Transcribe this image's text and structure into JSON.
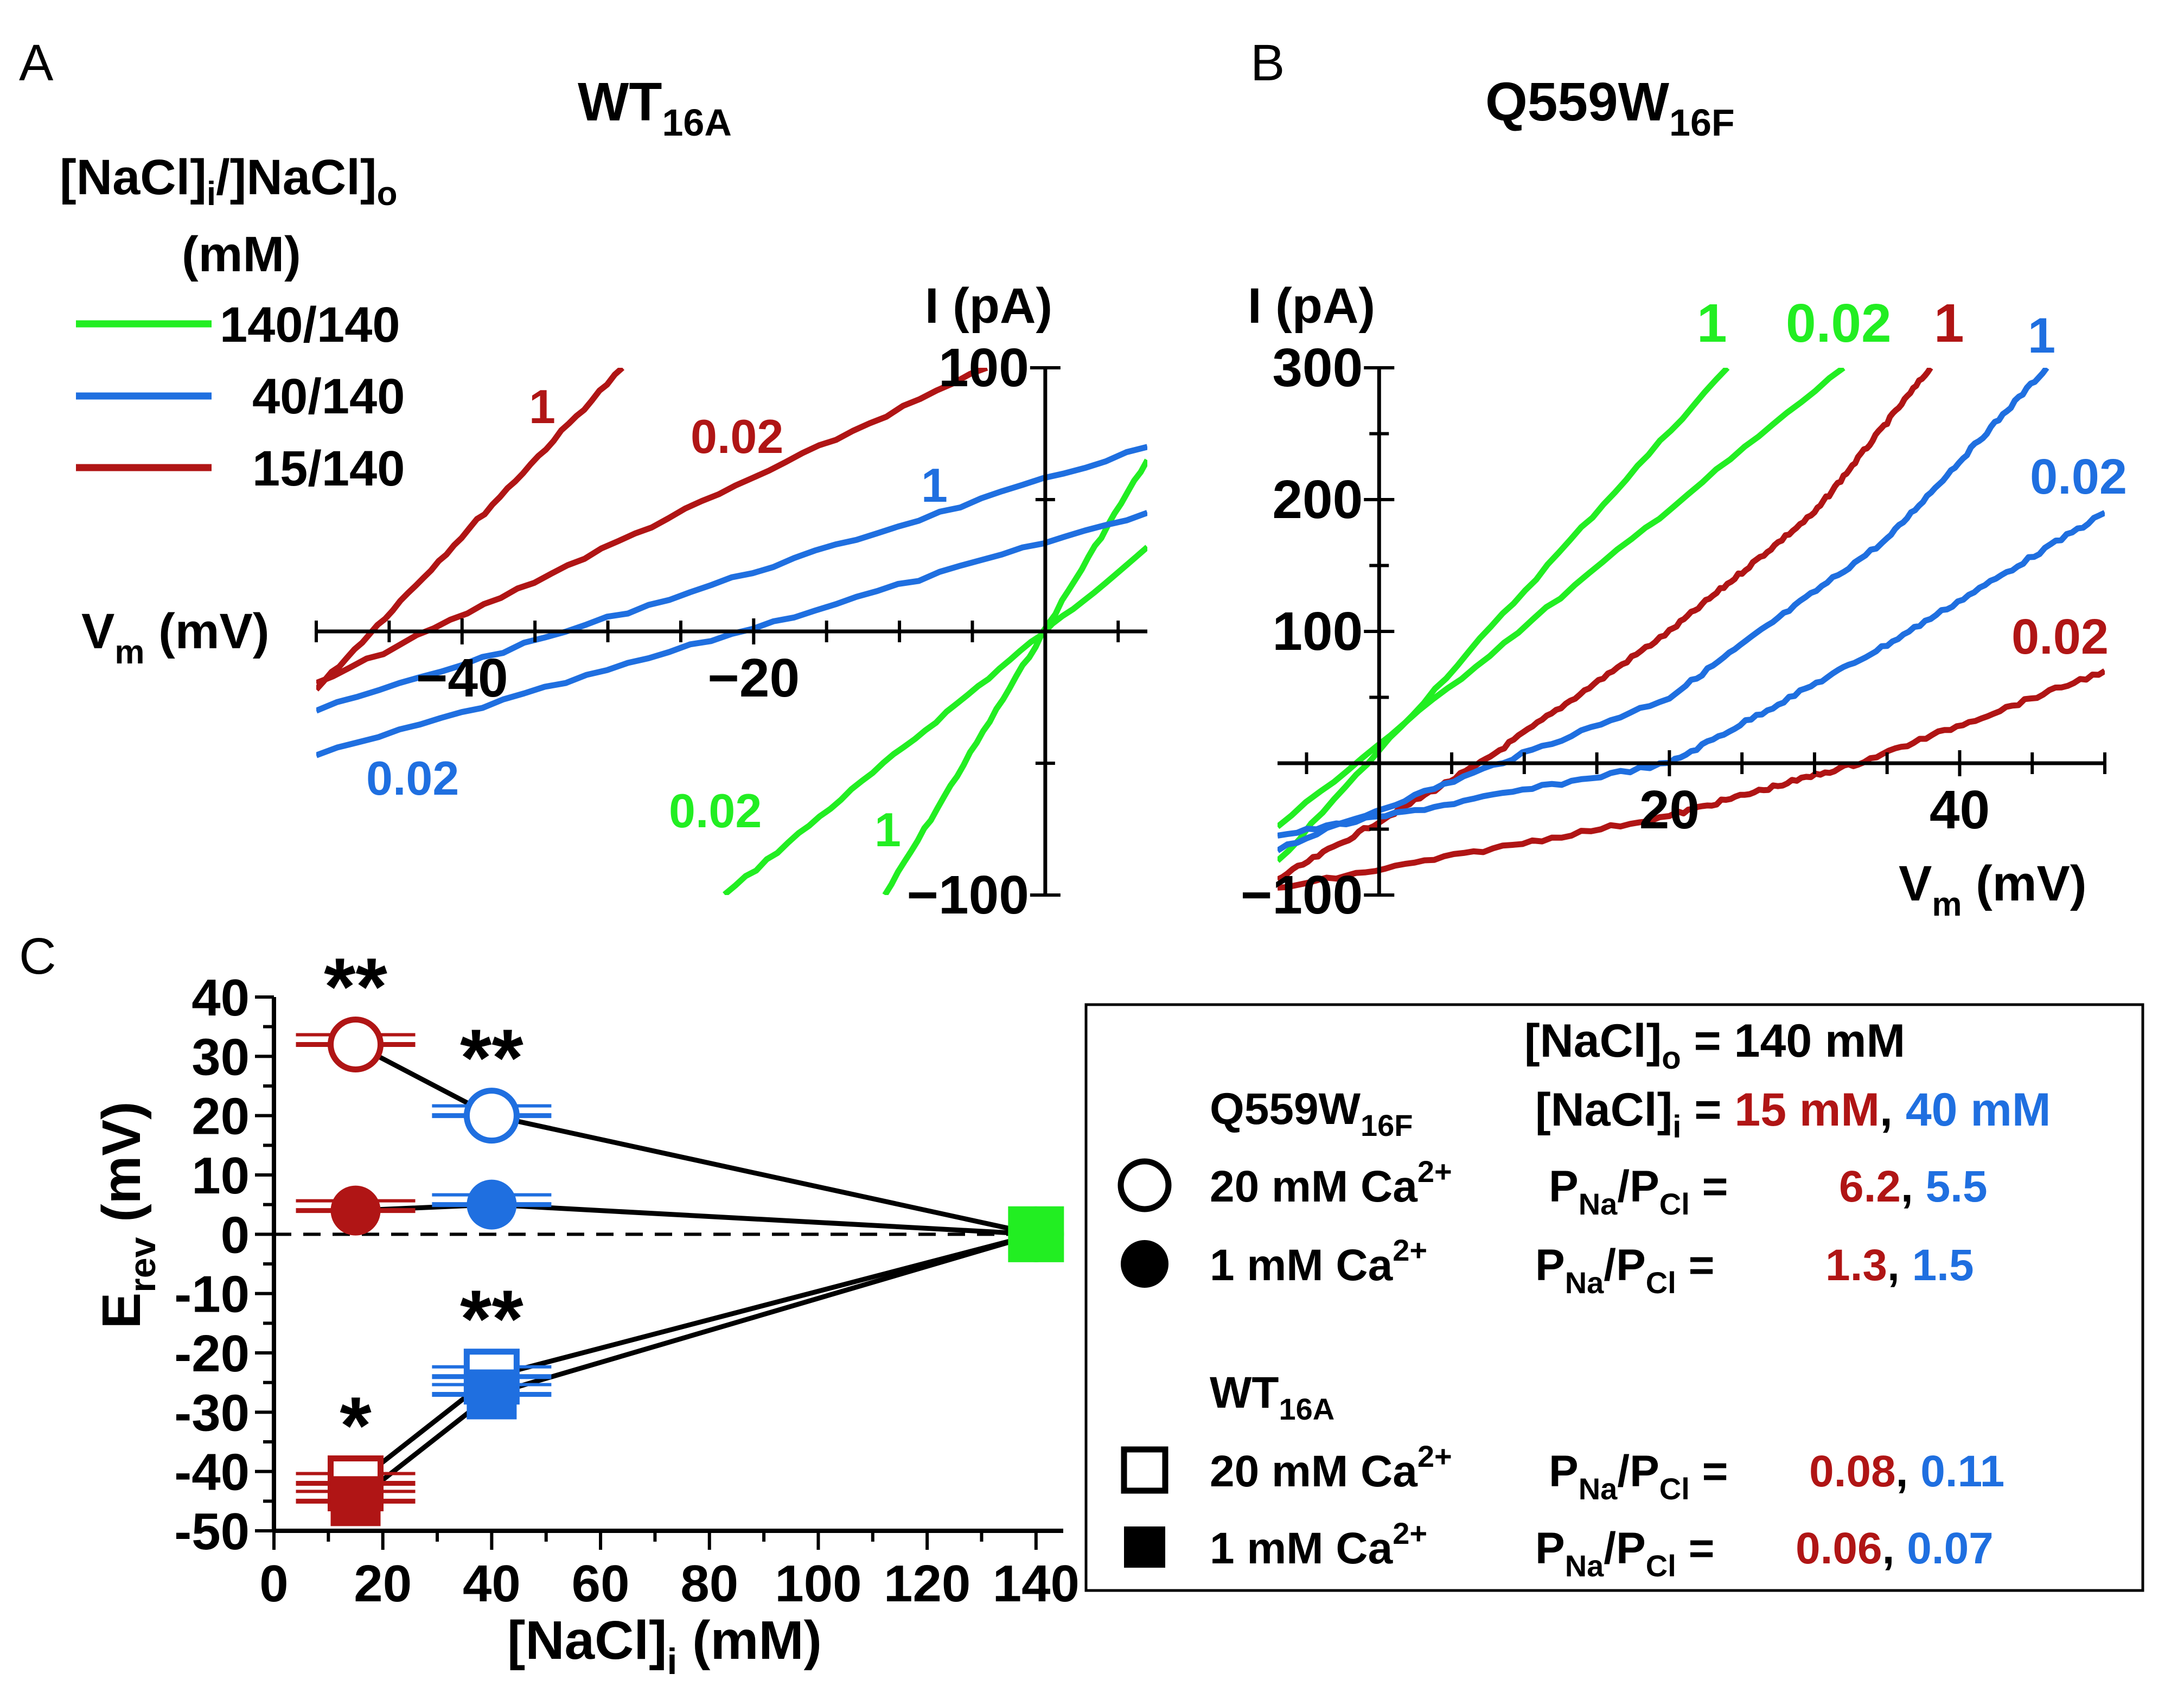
{
  "colors": {
    "green": "#22ee22",
    "blue": "#1f6fe0",
    "red": "#b01515",
    "black": "#000000"
  },
  "chart_data": [
    {
      "id": "A",
      "type": "line",
      "panel_label": "A",
      "title": "WT",
      "title_sub": "16A",
      "legend_title": "[NaCl]i/]NaCl]o",
      "legend_title_parts": [
        "[NaCl]",
        "i",
        "/]NaCl]",
        "o"
      ],
      "legend_units": "(mM)",
      "legend": [
        {
          "label": "140/140",
          "color": "green"
        },
        {
          "label": "40/140",
          "color": "blue"
        },
        {
          "label": "15/140",
          "color": "red"
        }
      ],
      "xlabel": "Vm (mV)",
      "xlabel_main": "V",
      "xlabel_sub": "m",
      "xlabel_unit": " (mV)",
      "ylabel": "I (pA)",
      "xlim": [
        -50,
        7
      ],
      "ylim": [
        -100,
        100
      ],
      "x_ticks": [
        -40,
        -20
      ],
      "x_tick_labels": [
        "−40",
        "−20"
      ],
      "y_ticks": [
        100,
        -100
      ],
      "y_tick_labels": [
        "100",
        "−100"
      ],
      "series": [
        {
          "name": "140/140 1",
          "color": "green",
          "label": "1",
          "x": [
            -11,
            7
          ],
          "y": [
            -100,
            65
          ]
        },
        {
          "name": "140/140 0.02",
          "color": "green",
          "label": "0.02",
          "x": [
            -22,
            7
          ],
          "y": [
            -100,
            32
          ]
        },
        {
          "name": "40/140 1",
          "color": "blue",
          "label": "1",
          "x": [
            -50,
            7
          ],
          "y": [
            -30,
            70
          ]
        },
        {
          "name": "40/140 0.02",
          "color": "blue",
          "label": "0.02",
          "x": [
            -50,
            7
          ],
          "y": [
            -47,
            45
          ]
        },
        {
          "name": "15/140 1",
          "color": "red",
          "label": "1",
          "x": [
            -50,
            -29
          ],
          "y": [
            -22,
            100
          ]
        },
        {
          "name": "15/140 0.02",
          "color": "red",
          "label": "0.02",
          "x": [
            -50,
            -4
          ],
          "y": [
            -20,
            100
          ]
        }
      ]
    },
    {
      "id": "B",
      "type": "line",
      "panel_label": "B",
      "title": "Q559W",
      "title_sub": "16F",
      "xlabel": "Vm (mV)",
      "xlabel_main": "V",
      "xlabel_sub": "m",
      "xlabel_unit": " (mV)",
      "ylabel": "I (pA)",
      "xlim": [
        -7,
        50
      ],
      "ylim": [
        -100,
        300
      ],
      "x_ticks": [
        20,
        40
      ],
      "x_tick_labels": [
        "20",
        "40"
      ],
      "y_ticks": [
        300,
        200,
        100,
        -100
      ],
      "y_tick_labels": [
        "300",
        "200",
        "100",
        "−100"
      ],
      "series": [
        {
          "name": "140/140 1",
          "color": "green",
          "label": "1",
          "x": [
            -7,
            24
          ],
          "y": [
            -75,
            300
          ]
        },
        {
          "name": "140/140 0.02",
          "color": "green",
          "label": "0.02",
          "x": [
            -7,
            32
          ],
          "y": [
            -48,
            300
          ]
        },
        {
          "name": "15/140 1",
          "color": "red",
          "label": "1",
          "x": [
            -7,
            7,
            20,
            30,
            38
          ],
          "y": [
            -88,
            0,
            100,
            190,
            300
          ]
        },
        {
          "name": "40/140 1",
          "color": "blue",
          "label": "1",
          "x": [
            -7,
            20,
            35,
            46
          ],
          "y": [
            -65,
            50,
            170,
            300
          ]
        },
        {
          "name": "40/140 0.02",
          "color": "blue",
          "label": "0.02",
          "x": [
            -7,
            20,
            35,
            50
          ],
          "y": [
            -55,
            0,
            90,
            190
          ]
        },
        {
          "name": "15/140 0.02",
          "color": "red",
          "label": "0.02",
          "x": [
            -7,
            20,
            33,
            50
          ],
          "y": [
            -95,
            -40,
            0,
            70
          ]
        }
      ]
    },
    {
      "id": "C",
      "type": "scatter",
      "panel_label": "C",
      "xlabel": "[NaCl]i (mM)",
      "xlabel_main": "[NaCl]",
      "xlabel_sub": "i",
      "xlabel_unit": " (mM)",
      "ylabel": "Erev (mV)",
      "ylabel_main": "E",
      "ylabel_sub": "rev",
      "ylabel_unit": " (mV)",
      "xlim": [
        0,
        145
      ],
      "ylim": [
        -50,
        40
      ],
      "x_ticks": [
        0,
        20,
        40,
        60,
        80,
        100,
        120,
        140
      ],
      "x_tick_labels": [
        "0",
        "20",
        "40",
        "60",
        "80",
        "100",
        "120",
        "140"
      ],
      "y_ticks": [
        40,
        30,
        20,
        10,
        0,
        -10,
        -20,
        -30,
        -40,
        -50
      ],
      "y_tick_labels": [
        "40",
        "30",
        "20",
        "10",
        "0",
        "-10",
        "-20",
        "-30",
        "-40",
        "-50"
      ],
      "series": [
        {
          "name": "Q559W16F 20 mM Ca2+",
          "marker": "circle-open",
          "x": [
            15,
            40,
            140
          ],
          "y": [
            32,
            20,
            0
          ],
          "colors": [
            "red",
            "blue",
            "green"
          ],
          "stars": [
            "**",
            "**",
            ""
          ]
        },
        {
          "name": "Q559W16F 1 mM Ca2+",
          "marker": "circle-filled",
          "x": [
            15,
            40,
            140
          ],
          "y": [
            4,
            5,
            0
          ],
          "colors": [
            "red",
            "blue",
            "green"
          ],
          "stars": [
            "",
            "",
            ""
          ]
        },
        {
          "name": "WT16A 20 mM Ca2+",
          "marker": "square-open",
          "x": [
            15,
            40,
            140
          ],
          "y": [
            -42,
            -24,
            0
          ],
          "colors": [
            "red",
            "blue",
            "green"
          ],
          "stars": [
            "*",
            "**",
            ""
          ]
        },
        {
          "name": "WT16A 1 mM Ca2+",
          "marker": "square-filled",
          "x": [
            15,
            40,
            140
          ],
          "y": [
            -45,
            -27,
            0
          ],
          "colors": [
            "red",
            "blue",
            "green"
          ],
          "stars": [
            "",
            "",
            ""
          ]
        }
      ],
      "legend_box": {
        "nacl_o": "[NaCl]o = 140 mM",
        "nacl_o_parts": [
          "[NaCl]",
          "o",
          " = 140 mM"
        ],
        "nacl_i_parts": [
          "[NaCl]",
          "i",
          " = "
        ],
        "nacl_i_values": [
          "15 mM",
          "40 mM"
        ],
        "groups": [
          {
            "title": "Q559W",
            "title_sub": "16F",
            "rows": [
              {
                "marker": "circle-open",
                "label": "20 mM Ca",
                "sup": "2+",
                "ratio_values": [
                  "6.2",
                  "5.5"
                ]
              },
              {
                "marker": "circle-filled",
                "label": "1 mM Ca",
                "sup": "2+",
                "ratio_values": [
                  "1.3",
                  "1.5"
                ]
              }
            ]
          },
          {
            "title": "WT",
            "title_sub": "16A",
            "rows": [
              {
                "marker": "square-open",
                "label": "20 mM Ca",
                "sup": "2+",
                "ratio_values": [
                  "0.08",
                  "0.11"
                ]
              },
              {
                "marker": "square-filled",
                "label": "1 mM Ca",
                "sup": "2+",
                "ratio_values": [
                  "0.06",
                  "0.07"
                ]
              }
            ]
          }
        ],
        "ratio_parts": [
          "P",
          "Na",
          "/P",
          "Cl",
          " ="
        ]
      }
    }
  ]
}
